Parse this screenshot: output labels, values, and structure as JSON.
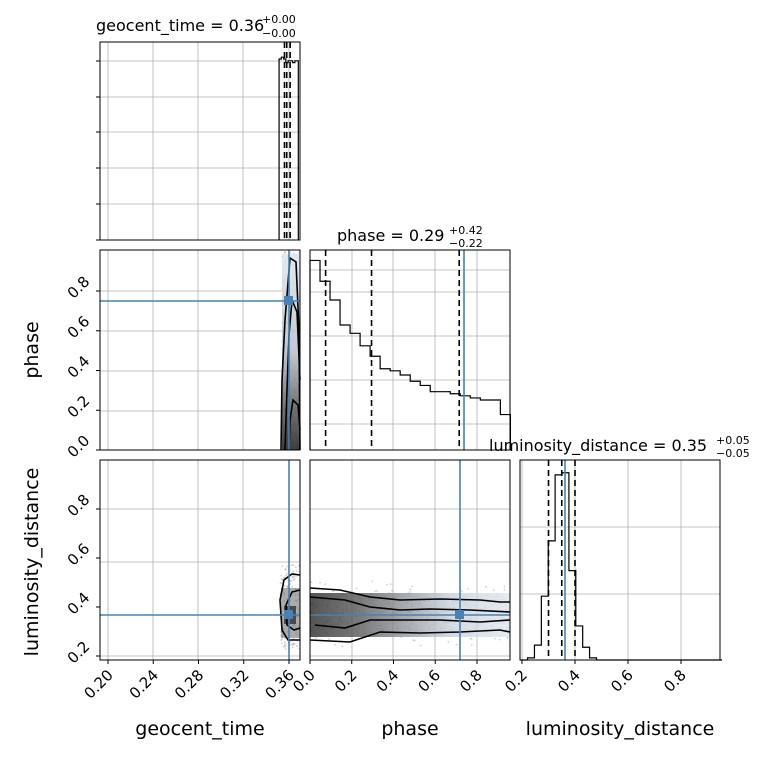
{
  "chart_data": {
    "type": "corner",
    "parameters": [
      "geocent_time",
      "phase",
      "luminosity_distance"
    ],
    "truth": {
      "geocent_time": 0.36,
      "phase": 0.74,
      "luminosity_distance": 0.36
    },
    "truth_color": "#4682b4",
    "titles": {
      "geocent_time": {
        "label": "geocent_time = ",
        "median": "0.36",
        "plus": "+0.00",
        "minus": "−0.00"
      },
      "phase": {
        "label": "phase = ",
        "median": "0.29",
        "plus": "+0.42",
        "minus": "−0.22"
      },
      "luminosity_distance": {
        "label": "luminosity_distance = ",
        "median": "0.35",
        "plus": "+0.05",
        "minus": "−0.05"
      }
    },
    "quantiles": {
      "geocent_time": [
        0.356,
        0.358,
        0.361
      ],
      "phase": [
        0.07,
        0.29,
        0.71
      ],
      "luminosity_distance": [
        0.3,
        0.35,
        0.4
      ]
    },
    "axis_ranges": {
      "geocent_time": [
        0.195,
        0.37
      ],
      "phase": [
        0.0,
        0.96
      ],
      "luminosity_distance": [
        0.195,
        0.955
      ]
    },
    "ticks": {
      "geocent_time": {
        "values": [
          0.2,
          0.24,
          0.28,
          0.32,
          0.36
        ],
        "labels": [
          "0.20",
          "0.24",
          "0.28",
          "0.32",
          "0.36"
        ]
      },
      "phase_x": {
        "values": [
          0.0,
          0.2,
          0.4,
          0.6,
          0.8
        ],
        "labels": [
          "0.0",
          "0.2",
          "0.4",
          "0.6",
          "0.8"
        ]
      },
      "phase_y": {
        "values": [
          0.0,
          0.2,
          0.4,
          0.6,
          0.8
        ],
        "labels": [
          "0.0",
          "0.2",
          "0.4",
          "0.6",
          "0.8"
        ]
      },
      "luminosity_distance": {
        "values": [
          0.2,
          0.4,
          0.6,
          0.8
        ],
        "labels": [
          "0.2",
          "0.4",
          "0.6",
          "0.8"
        ]
      }
    },
    "histograms": {
      "geocent_time": {
        "bin_edges": [
          0.353,
          0.355,
          0.357,
          0.359,
          0.361,
          0.363,
          0.365,
          0.367,
          0.37
        ],
        "counts": [
          1.0,
          1.01,
          1.0,
          0.98,
          0.99,
          0.99,
          0.98,
          0.99
        ]
      },
      "phase": {
        "bin_edges": [
          0.0,
          0.048,
          0.096,
          0.144,
          0.192,
          0.24,
          0.288,
          0.336,
          0.384,
          0.432,
          0.48,
          0.528,
          0.576,
          0.624,
          0.672,
          0.72,
          0.768,
          0.816,
          0.864,
          0.912,
          0.96
        ],
        "counts": [
          0.91,
          0.81,
          0.72,
          0.6,
          0.56,
          0.5,
          0.45,
          0.39,
          0.38,
          0.36,
          0.33,
          0.31,
          0.28,
          0.28,
          0.27,
          0.26,
          0.25,
          0.24,
          0.24,
          0.17
        ]
      },
      "luminosity_distance": {
        "bin_edges": [
          0.195,
          0.221,
          0.247,
          0.273,
          0.299,
          0.325,
          0.351,
          0.377,
          0.403,
          0.429,
          0.455,
          0.481,
          0.507,
          0.533,
          0.955
        ],
        "counts": [
          0.0,
          0.01,
          0.07,
          0.3,
          0.56,
          0.87,
          0.88,
          0.42,
          0.16,
          0.06,
          0.01,
          0.0,
          0.0,
          0.0
        ]
      }
    },
    "axis_labels": {
      "x": [
        "geocent_time",
        "phase",
        "luminosity_distance"
      ],
      "y": [
        "",
        "phase",
        "luminosity_distance"
      ]
    },
    "grid": true
  }
}
